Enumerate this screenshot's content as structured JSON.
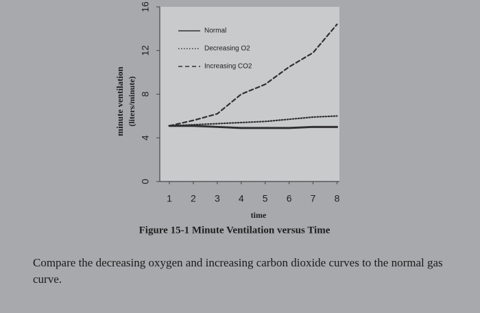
{
  "chart_data": {
    "type": "line",
    "title": "Figure 15-1 Minute Ventilation versus Time",
    "xlabel": "time",
    "ylabel": [
      "minute ventilation",
      "(liters/minute)"
    ],
    "x": [
      1,
      2,
      3,
      4,
      5,
      6,
      7,
      8
    ],
    "series": [
      {
        "name": "Normal",
        "color": "#2f2f2f",
        "style": "solid",
        "values": [
          5.1,
          5.1,
          5.0,
          4.9,
          4.9,
          4.9,
          5.0,
          5.0
        ]
      },
      {
        "name": "Decreasing O2",
        "color": "#2f2f2f",
        "style": "dotted",
        "values": [
          5.1,
          5.2,
          5.3,
          5.4,
          5.5,
          5.7,
          5.9,
          6.0
        ]
      },
      {
        "name": "Increasing CO2",
        "color": "#2f2f2f",
        "style": "dashed",
        "values": [
          5.1,
          5.6,
          6.2,
          8.0,
          8.9,
          10.5,
          11.8,
          14.4
        ]
      }
    ],
    "xlim": [
      0.6,
      8.1
    ],
    "xticks": [
      1,
      2,
      3,
      4,
      5,
      6,
      7,
      8
    ],
    "ylim": [
      0,
      16
    ],
    "yticks": [
      0,
      4,
      8,
      12,
      16
    ],
    "legend": "upper-left",
    "grid": false
  },
  "question": "Compare the decreasing oxygen and increasing carbon dioxide curves to the normal gas curve."
}
